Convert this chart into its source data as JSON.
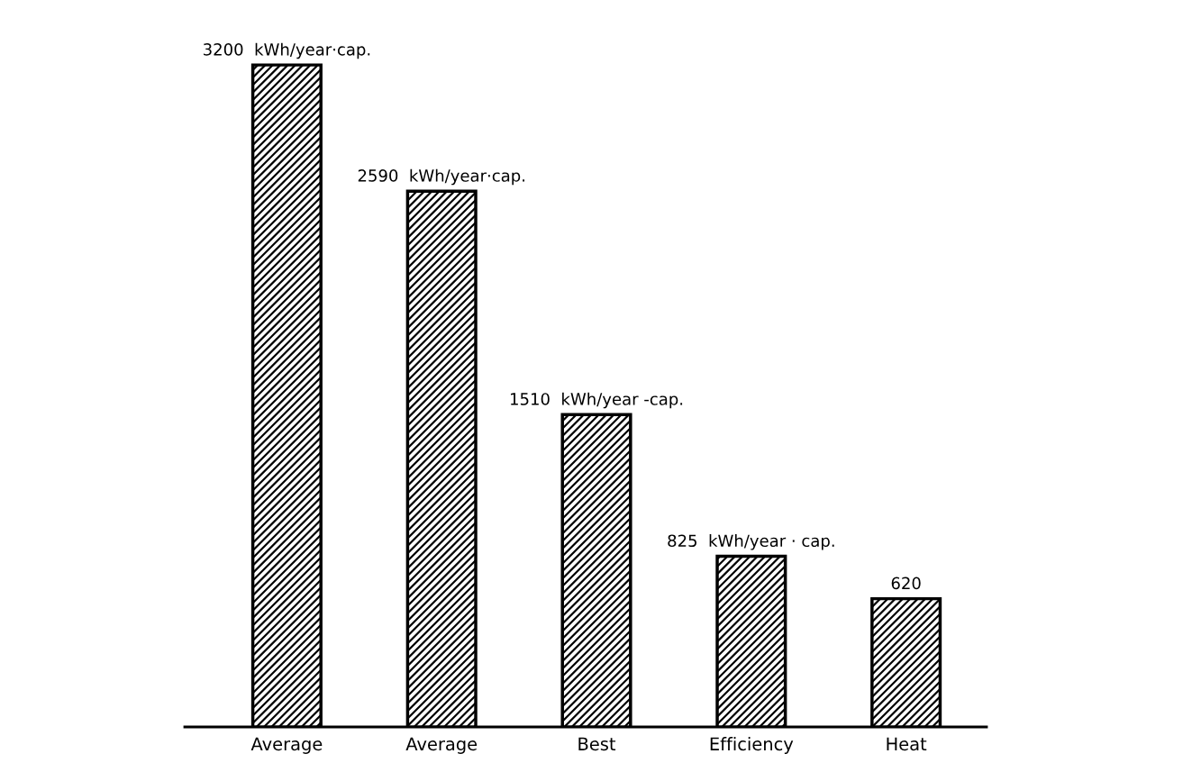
{
  "chart_data": {
    "type": "bar",
    "categories": [
      "Average",
      "Average",
      "Best",
      "Efficiency",
      "Heat"
    ],
    "values": [
      3200,
      2590,
      1510,
      825,
      620
    ],
    "value_labels": [
      "3200  kWh/year·cap.",
      "2590  kWh/year·cap.",
      "1510  kWh/year -cap.",
      "825  kWh/year · cap.",
      "620"
    ],
    "color": "#000000",
    "grid": false,
    "legend": false
  }
}
